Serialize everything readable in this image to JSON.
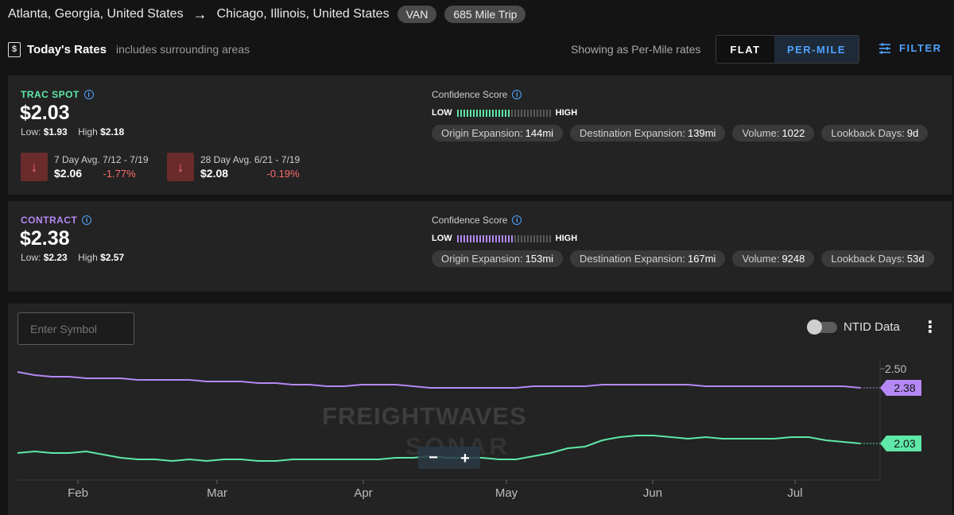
{
  "route": {
    "origin": "Atlanta, Georgia, United States",
    "destination": "Chicago, Illinois, United States",
    "equipment": "VAN",
    "trip": "685 Mile Trip"
  },
  "rates": {
    "title": "Today's Rates",
    "subtitle": "includes surrounding areas",
    "showing": "Showing as Per-Mile rates",
    "toggle_flat": "FLAT",
    "toggle_per_mile": "PER-MILE",
    "filter": "FILTER"
  },
  "spot": {
    "label": "TRAC SPOT",
    "value": "$2.03",
    "low_label": "Low:",
    "low": "$1.93",
    "high_label": "High",
    "high": "$2.18",
    "avg7_title": "7 Day Avg. 7/12 - 7/19",
    "avg7_value": "$2.06",
    "avg7_pct": "-1.77%",
    "avg28_title": "28 Day Avg. 6/21 - 7/19",
    "avg28_value": "$2.08",
    "avg28_pct": "-0.19%",
    "confidence_label": "Confidence Score",
    "conf_low": "LOW",
    "conf_high": "HIGH",
    "conf_level": 0.55,
    "color": "#5fe8a8",
    "chips": [
      {
        "k": "Origin Expansion:",
        "v": "144mi"
      },
      {
        "k": "Destination Expansion:",
        "v": "139mi"
      },
      {
        "k": "Volume:",
        "v": "1022"
      },
      {
        "k": "Lookback Days:",
        "v": "9d"
      }
    ]
  },
  "contract": {
    "label": "CONTRACT",
    "value": "$2.38",
    "low_label": "Low:",
    "low": "$2.23",
    "high_label": "High",
    "high": "$2.57",
    "confidence_label": "Confidence Score",
    "conf_low": "LOW",
    "conf_high": "HIGH",
    "conf_level": 0.6,
    "color": "#b589f5",
    "chips": [
      {
        "k": "Origin Expansion:",
        "v": "153mi"
      },
      {
        "k": "Destination Expansion:",
        "v": "167mi"
      },
      {
        "k": "Volume:",
        "v": "9248"
      },
      {
        "k": "Lookback Days:",
        "v": "53d"
      }
    ]
  },
  "chart_panel": {
    "symbol_placeholder": "Enter Symbol",
    "ntid_label": "NTID Data",
    "watermark_top": "FREIGHTWAVES",
    "watermark_bottom": "SONAR",
    "zoom_out": "−",
    "zoom_in": "+"
  },
  "chart_data": {
    "type": "line",
    "x_ticks": [
      "Feb",
      "Mar",
      "Apr",
      "May",
      "Jun",
      "Jul"
    ],
    "y_ticks": [
      "2.50"
    ],
    "ylim": [
      1.8,
      2.56
    ],
    "series": [
      {
        "color": "#b589f5",
        "last_label": "2.38",
        "values": [
          2.48,
          2.46,
          2.45,
          2.45,
          2.44,
          2.44,
          2.44,
          2.43,
          2.43,
          2.43,
          2.43,
          2.42,
          2.42,
          2.42,
          2.41,
          2.41,
          2.4,
          2.4,
          2.39,
          2.39,
          2.4,
          2.4,
          2.4,
          2.39,
          2.38,
          2.38,
          2.38,
          2.38,
          2.38,
          2.38,
          2.39,
          2.39,
          2.39,
          2.39,
          2.4,
          2.4,
          2.4,
          2.4,
          2.4,
          2.4,
          2.39,
          2.39,
          2.39,
          2.39,
          2.39,
          2.39,
          2.39,
          2.39,
          2.39,
          2.38
        ]
      },
      {
        "color": "#5fe8a8",
        "last_label": "2.03",
        "values": [
          1.97,
          1.98,
          1.97,
          1.97,
          1.98,
          1.96,
          1.94,
          1.93,
          1.93,
          1.92,
          1.93,
          1.92,
          1.93,
          1.93,
          1.92,
          1.92,
          1.93,
          1.93,
          1.93,
          1.93,
          1.93,
          1.93,
          1.94,
          1.94,
          1.95,
          1.94,
          1.94,
          1.94,
          1.93,
          1.93,
          1.95,
          1.97,
          2.0,
          2.01,
          2.05,
          2.07,
          2.08,
          2.08,
          2.07,
          2.06,
          2.07,
          2.06,
          2.06,
          2.06,
          2.06,
          2.07,
          2.07,
          2.05,
          2.04,
          2.03
        ]
      }
    ]
  }
}
